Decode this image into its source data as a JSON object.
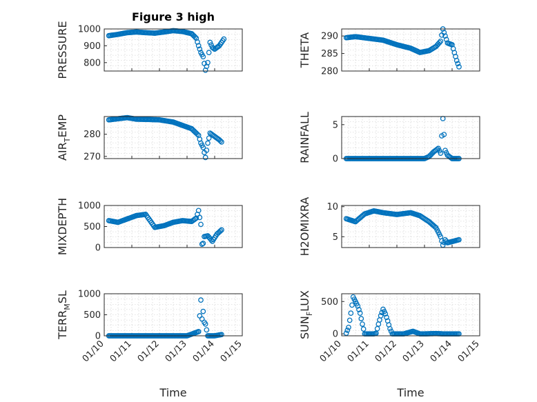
{
  "figure": {
    "title": "Figure 3 high",
    "marker_color": "#0072BD",
    "grid": true,
    "x_axis_label": "Time"
  },
  "chart_data": [
    {
      "type": "scatter",
      "ylabel": "PRESSURE",
      "title": "Figure 3 high",
      "ylim": [
        750,
        1000
      ],
      "yticks": [
        "800",
        "900",
        "1000"
      ],
      "x": [
        "01/10 04:00",
        "01/10 12:00",
        "01/10 20:00",
        "01/11 04:00",
        "01/11 12:00",
        "01/11 20:00",
        "01/12 04:00",
        "01/12 12:00",
        "01/12 20:00",
        "01/13 04:00",
        "01/13 08:00",
        "01/13 10:00",
        "01/13 12:00",
        "01/13 14:00",
        "01/13 16:00",
        "01/13 18:00",
        "01/13 20:00",
        "01/13 22:00",
        "01/14 00:00",
        "01/14 04:00",
        "01/14 08:00"
      ],
      "y": [
        960,
        968,
        978,
        982,
        978,
        975,
        982,
        990,
        985,
        972,
        945,
        900,
        860,
        835,
        755,
        800,
        920,
        890,
        880,
        900,
        940
      ]
    },
    {
      "type": "scatter",
      "ylabel": "THETA",
      "ylim": [
        280,
        292
      ],
      "yticks": [
        "280",
        "285",
        "290"
      ],
      "x": [
        "01/10 04:00",
        "01/10 12:00",
        "01/11 00:00",
        "01/11 12:00",
        "01/12 00:00",
        "01/12 12:00",
        "01/12 20:00",
        "01/13 04:00",
        "01/13 10:00",
        "01/13 14:00",
        "01/13 16:00",
        "01/13 18:00",
        "01/13 20:00",
        "01/14 00:00",
        "01/14 04:00",
        "01/14 06:00"
      ],
      "y": [
        289.5,
        289.8,
        289.3,
        288.8,
        287.5,
        286.5,
        285.3,
        285.8,
        287.0,
        288.5,
        292.0,
        290.0,
        288.0,
        287.5,
        283.0,
        281.2
      ]
    },
    {
      "type": "scatter",
      "ylabel": "AIR_TEMP",
      "ylim": [
        269,
        288
      ],
      "yticks": [
        "270",
        "280"
      ],
      "x": [
        "01/10 04:00",
        "01/10 12:00",
        "01/10 20:00",
        "01/11 04:00",
        "01/11 12:00",
        "01/12 00:00",
        "01/12 12:00",
        "01/12 20:00",
        "01/13 04:00",
        "01/13 10:00",
        "01/13 12:00",
        "01/13 14:00",
        "01/13 16:00",
        "01/13 18:00",
        "01/13 20:00",
        "01/14 00:00",
        "01/14 04:00",
        "01/14 06:00"
      ],
      "y": [
        286.5,
        287.0,
        287.5,
        286.8,
        286.7,
        286.5,
        285.5,
        284.0,
        282.5,
        279.5,
        276.0,
        274.0,
        269.5,
        276.0,
        280.5,
        279.0,
        277.5,
        276.5
      ]
    },
    {
      "type": "scatter",
      "ylabel": "RAINFALL",
      "ylim": [
        0,
        6.2
      ],
      "yticks": [
        "0",
        "5"
      ],
      "x": [
        "01/10 04:00",
        "01/11 00:00",
        "01/12 00:00",
        "01/12 12:00",
        "01/13 00:00",
        "01/13 04:00",
        "01/13 08:00",
        "01/13 12:00",
        "01/13 14:00",
        "01/13 16:00",
        "01/13 18:00",
        "01/13 20:00",
        "01/14 00:00",
        "01/14 06:00"
      ],
      "y": [
        0,
        0,
        0,
        0,
        0,
        0.3,
        1.0,
        1.5,
        0.8,
        5.9,
        1.2,
        0.5,
        0,
        0
      ]
    },
    {
      "type": "scatter",
      "ylabel": "MIXDEPTH",
      "ylim": [
        0,
        1000
      ],
      "yticks": [
        "0",
        "500",
        "1000"
      ],
      "x": [
        "01/10 04:00",
        "01/10 12:00",
        "01/10 20:00",
        "01/11 04:00",
        "01/11 12:00",
        "01/11 20:00",
        "01/12 04:00",
        "01/12 12:00",
        "01/12 20:00",
        "01/13 04:00",
        "01/13 08:00",
        "01/13 10:00",
        "01/13 12:00",
        "01/13 13:00",
        "01/13 14:00",
        "01/13 15:00",
        "01/13 18:00",
        "01/13 22:00",
        "01/14 02:00",
        "01/14 06:00"
      ],
      "y": [
        640,
        600,
        680,
        760,
        790,
        480,
        520,
        600,
        640,
        620,
        700,
        880,
        550,
        80,
        100,
        260,
        280,
        150,
        320,
        420
      ]
    },
    {
      "type": "scatter",
      "ylabel": "H2OMIXRA",
      "ylim": [
        3.2,
        10.2
      ],
      "yticks": [
        "5",
        "10"
      ],
      "x": [
        "01/10 04:00",
        "01/10 12:00",
        "01/10 20:00",
        "01/11 04:00",
        "01/11 12:00",
        "01/12 00:00",
        "01/12 12:00",
        "01/12 20:00",
        "01/13 04:00",
        "01/13 10:00",
        "01/13 14:00",
        "01/13 16:00",
        "01/13 18:00",
        "01/13 20:00",
        "01/14 00:00",
        "01/14 06:00"
      ],
      "y": [
        8.0,
        7.5,
        8.8,
        9.3,
        9.0,
        8.7,
        9.0,
        8.5,
        7.5,
        6.5,
        5.0,
        3.6,
        4.5,
        4.0,
        4.2,
        4.5
      ]
    },
    {
      "type": "scatter",
      "ylabel": "TERR_MSL",
      "ylim": [
        0,
        1000
      ],
      "yticks": [
        "0",
        "500",
        "1000"
      ],
      "x": [
        "01/10 04:00",
        "01/11 00:00",
        "01/12 00:00",
        "01/13 00:00",
        "01/13 10:00",
        "01/13 12:00",
        "01/13 13:00",
        "01/13 14:00",
        "01/13 15:00",
        "01/13 16:00",
        "01/13 18:00",
        "01/14 00:00",
        "01/14 06:00"
      ],
      "y": [
        0,
        0,
        0,
        0,
        100,
        850,
        400,
        580,
        320,
        280,
        0,
        0,
        30
      ]
    },
    {
      "type": "scatter",
      "ylabel": "SUN_FLUX",
      "ylim": [
        -30,
        620
      ],
      "yticks": [
        "0",
        "500"
      ],
      "x": [
        "01/10 04:00",
        "01/10 06:00",
        "01/10 08:00",
        "01/10 10:00",
        "01/10 12:00",
        "01/10 14:00",
        "01/10 16:00",
        "01/10 18:00",
        "01/10 20:00",
        "01/11 00:00",
        "01/11 04:00",
        "01/11 06:00",
        "01/11 08:00",
        "01/11 10:00",
        "01/11 12:00",
        "01/11 14:00",
        "01/11 16:00",
        "01/11 18:00",
        "01/11 20:00",
        "01/12 00:00",
        "01/12 06:00",
        "01/12 10:00",
        "01/12 14:00",
        "01/12 20:00",
        "01/13 00:00",
        "01/13 10:00",
        "01/13 16:00",
        "01/14 00:00",
        "01/14 06:00"
      ],
      "y": [
        10,
        100,
        320,
        570,
        500,
        430,
        320,
        150,
        0,
        0,
        0,
        10,
        150,
        280,
        380,
        310,
        200,
        80,
        0,
        0,
        0,
        20,
        40,
        0,
        0,
        5,
        0,
        0,
        0
      ]
    }
  ],
  "x_axis": {
    "xlim": [
      "01/10 00:00",
      "01/15 00:00"
    ],
    "xticks": [
      "01/10",
      "01/11",
      "01/12",
      "01/13",
      "01/14",
      "01/15"
    ]
  }
}
